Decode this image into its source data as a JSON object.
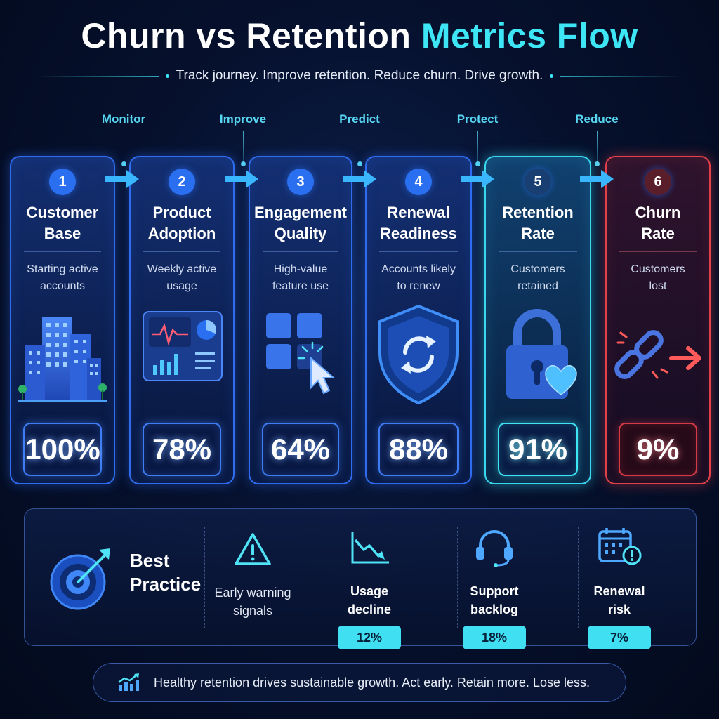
{
  "header": {
    "title_main": "Churn vs Retention ",
    "title_accent": "Metrics Flow",
    "subtitle": "Track journey. Improve retention. Reduce churn. Drive growth."
  },
  "steps": [
    "Monitor",
    "Improve",
    "Predict",
    "Protect",
    "Reduce"
  ],
  "cards": [
    {
      "num": "1",
      "title": "Customer\nBase",
      "desc": "Starting active\naccounts",
      "value": "100%",
      "icon": "buildings-icon"
    },
    {
      "num": "2",
      "title": "Product\nAdoption",
      "desc": "Weekly active\nusage",
      "value": "78%",
      "icon": "dashboard-icon"
    },
    {
      "num": "3",
      "title": "Engagement\nQuality",
      "desc": "High-value\nfeature use",
      "value": "64%",
      "icon": "cursor-grid-icon"
    },
    {
      "num": "4",
      "title": "Renewal\nReadiness",
      "desc": "Accounts likely\nto renew",
      "value": "88%",
      "icon": "shield-refresh-icon"
    },
    {
      "num": "5",
      "title": "Retention\nRate",
      "desc": "Customers\nretained",
      "value": "91%",
      "icon": "lock-heart-icon"
    },
    {
      "num": "6",
      "title": "Churn\nRate",
      "desc": "Customers\nlost",
      "value": "9%",
      "icon": "broken-chain-icon"
    }
  ],
  "best_practice": {
    "label": "Best\nPractice",
    "signals": [
      {
        "text": "Early warning\nsignals",
        "badge": null,
        "icon": "warning-icon"
      },
      {
        "text": "Usage\ndecline",
        "badge": "12%",
        "icon": "decline-chart-icon"
      },
      {
        "text": "Support\nbacklog",
        "badge": "18%",
        "icon": "headset-icon"
      },
      {
        "text": "Renewal\nrisk",
        "badge": "7%",
        "icon": "calendar-alert-icon"
      }
    ]
  },
  "footer": {
    "text": "Healthy retention drives sustainable growth. Act early. Retain more. Lose less.",
    "icon": "growth-chart-icon"
  },
  "colors": {
    "accent": "#3ee6f5",
    "card_border": "#2f6cf0",
    "retention": "#39d8ef",
    "churn": "#e2414a"
  }
}
